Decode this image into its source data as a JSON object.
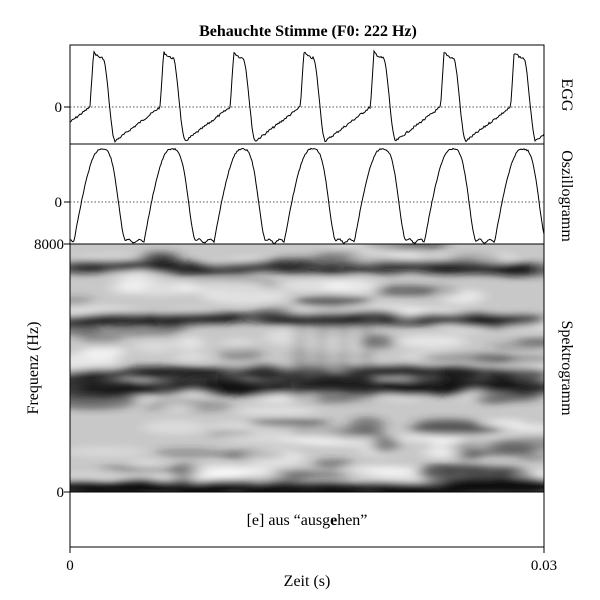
{
  "figure": {
    "title": "Behauchte Stimme (F0: 222 Hz)",
    "caption_prefix": "[e] aus “ausg",
    "caption_bold": "e",
    "caption_suffix": "hen”"
  },
  "chart_data": {
    "type": "line",
    "title": "Behauchte Stimme (F0: 222 Hz)",
    "xlabel": "Zeit (s)",
    "xlim": [
      0,
      0.03
    ],
    "x_ticks": [
      "0",
      "0.03"
    ],
    "panels": [
      {
        "name": "EGG",
        "type": "line",
        "y_ticks": [
          "0"
        ],
        "zero_line": "dotted",
        "cycles": 7,
        "fundamental_hz": 222
      },
      {
        "name": "Oszillogramm",
        "type": "line",
        "y_ticks": [
          "0"
        ],
        "zero_line": "dotted",
        "cycles": 7,
        "fundamental_hz": 222
      },
      {
        "name": "Spektrogramm",
        "type": "heatmap",
        "ylabel": "Frequenz (Hz)",
        "ylim": [
          0,
          8000
        ],
        "y_ticks": [
          "8000",
          "0"
        ],
        "colormap": "grayscale (dark = high energy)",
        "dark_bands_hz": [
          {
            "freq": 80,
            "intensity": 1.0
          },
          {
            "freq": 3420,
            "intensity": 0.75
          },
          {
            "freq": 3820,
            "intensity": 0.55
          },
          {
            "freq": 5600,
            "intensity": 0.45
          },
          {
            "freq": 7250,
            "intensity": 0.45
          }
        ]
      }
    ]
  }
}
